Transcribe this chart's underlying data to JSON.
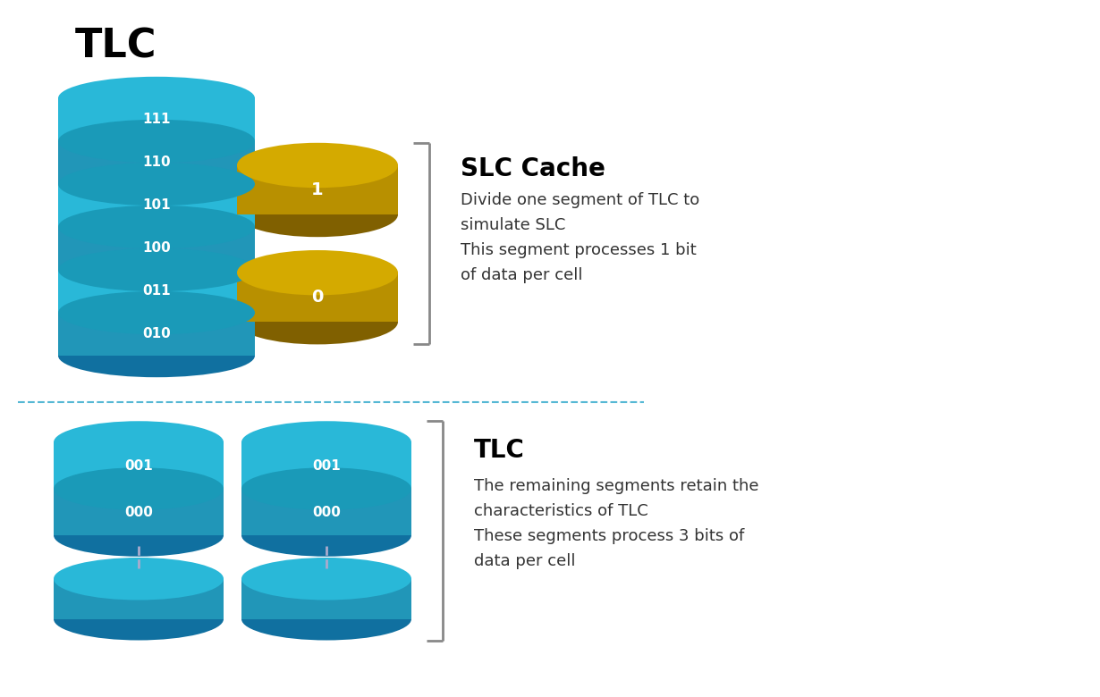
{
  "bg_color": "#ffffff",
  "tlc_body_color": "#2196b8",
  "tlc_top_color": "#29b8d8",
  "tlc_dark_color": "#1070a0",
  "tlc_band_color": "#1a9ab8",
  "slc_body_color": "#b89000",
  "slc_top_color": "#d4aa00",
  "slc_dark_color": "#806000",
  "title_top": "TLC",
  "slc_label": "SLC Cache",
  "slc_desc": "Divide one segment of TLC to\nsimulate SLC\nThis segment processes 1 bit\nof data per cell",
  "tlc_label": "TLC",
  "tlc_desc": "The remaining segments retain the\ncharacteristics of TLC\nThese segments process 3 bits of\ndata per cell",
  "top_layers": [
    "111",
    "110",
    "101",
    "100",
    "011",
    "010"
  ],
  "bottom_layers": [
    "001",
    "000"
  ],
  "bracket_color": "#888888",
  "dash_color": "#56b8d4",
  "text_color": "#333333"
}
